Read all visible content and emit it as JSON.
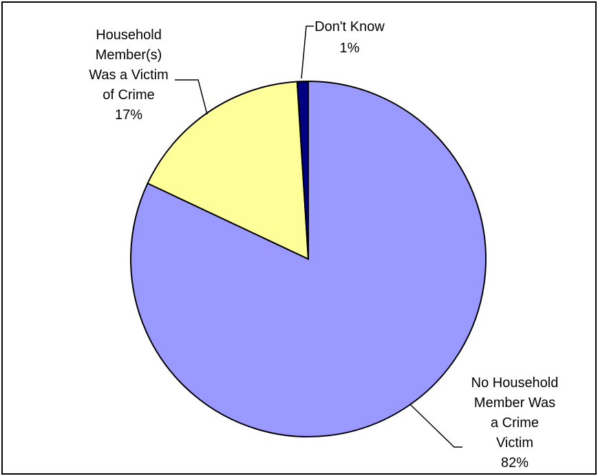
{
  "chart_data": {
    "type": "pie",
    "title": "",
    "legend": "none",
    "slices": [
      {
        "name": "No Household Member Was a Crime Victim",
        "value": 82,
        "label_lines": [
          "No Household",
          "Member Was",
          "a Crime",
          "Victim",
          "82%"
        ],
        "color": "#9999ff"
      },
      {
        "name": "Household Member(s) Was a Victim of Crime",
        "value": 17,
        "label_lines": [
          "Household",
          "Member(s)",
          "Was a Victim",
          "of Crime",
          "17%"
        ],
        "color": "#ffff99"
      },
      {
        "name": "Don't Know",
        "value": 1,
        "label_lines": [
          "Don't Know",
          "1%"
        ],
        "color": "#000080"
      }
    ]
  }
}
